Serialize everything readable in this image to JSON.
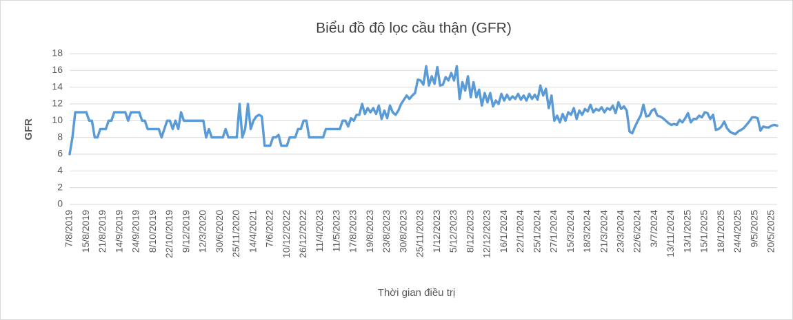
{
  "chart_data": {
    "type": "line",
    "title": "Biểu đồ độ lọc cầu thận (GFR)",
    "x_label": "Thời gian điều trị",
    "y_label": "GFR",
    "color": "#5b9bd5",
    "grid": true,
    "ylim": [
      0,
      18
    ],
    "yticks": [
      0,
      2,
      4,
      6,
      8,
      10,
      12,
      14,
      16,
      18
    ],
    "categories": [
      "7/8/2019",
      null,
      null,
      null,
      null,
      null,
      "15/8/2019",
      null,
      null,
      null,
      null,
      null,
      "21/8/2019",
      null,
      null,
      null,
      null,
      null,
      "14/9/2019",
      null,
      null,
      null,
      null,
      null,
      "24/9/2019",
      null,
      null,
      null,
      null,
      null,
      "8/10/2019",
      null,
      null,
      null,
      null,
      null,
      "22/10/2019",
      null,
      null,
      null,
      null,
      null,
      "9/12/2019",
      null,
      null,
      null,
      null,
      null,
      "12/3/2020",
      null,
      null,
      null,
      null,
      null,
      "30/6/2020",
      null,
      null,
      null,
      null,
      null,
      "25/11/2020",
      null,
      null,
      null,
      null,
      null,
      "14/4/2021",
      null,
      null,
      null,
      null,
      null,
      "7/6/2022",
      null,
      null,
      null,
      null,
      null,
      "10/12/2022",
      null,
      null,
      null,
      null,
      null,
      "26/12/2022",
      null,
      null,
      null,
      null,
      null,
      "11/4/2023",
      null,
      null,
      null,
      null,
      null,
      "11/5/2023",
      null,
      null,
      null,
      null,
      null,
      "17/8/2023",
      null,
      null,
      null,
      null,
      null,
      "19/8/2023",
      null,
      null,
      null,
      null,
      null,
      "23/8/2023",
      null,
      null,
      null,
      null,
      null,
      "30/8/2023",
      null,
      null,
      null,
      null,
      null,
      "25/11/2023",
      null,
      null,
      null,
      null,
      null,
      "1/12/2023",
      null,
      null,
      null,
      null,
      null,
      "5/12/2023",
      null,
      null,
      null,
      null,
      null,
      "8/12/2023",
      null,
      null,
      null,
      null,
      null,
      "12/12/2023",
      null,
      null,
      null,
      null,
      null,
      "16/1/2024",
      null,
      null,
      null,
      null,
      null,
      "22/1/2024",
      null,
      null,
      null,
      null,
      null,
      "25/1/2024",
      null,
      null,
      null,
      null,
      null,
      "27/1/2024",
      null,
      null,
      null,
      null,
      null,
      "15/3/2024",
      null,
      null,
      null,
      null,
      null,
      "18/3/2024",
      null,
      null,
      null,
      null,
      null,
      "21/3/2024",
      null,
      null,
      null,
      null,
      null,
      "23/3/2024",
      null,
      null,
      null,
      null,
      null,
      "22/6/2024",
      null,
      null,
      null,
      null,
      null,
      "3/7/2024",
      null,
      null,
      null,
      null,
      null,
      "13/11/2024",
      null,
      null,
      null,
      null,
      null,
      "13/1/2025",
      null,
      null,
      null,
      null,
      null,
      "15/1/2025",
      null,
      null,
      null,
      null,
      null,
      "18/1/2025",
      null,
      null,
      null,
      null,
      null,
      "24/4/2025",
      null,
      null,
      null,
      null,
      null,
      "9/5/2025",
      null,
      null,
      null,
      null,
      null,
      "20/5/2025",
      null,
      null
    ],
    "values": [
      6,
      8,
      11,
      11,
      11,
      11,
      11,
      10,
      10,
      8,
      8,
      9,
      9,
      9,
      10,
      10,
      11,
      11,
      11,
      11,
      11,
      10,
      11,
      11,
      11,
      11,
      10,
      10,
      9,
      9,
      9,
      9,
      9,
      8,
      9,
      10,
      10,
      9,
      10,
      9,
      11,
      10,
      10,
      10,
      10,
      10,
      10,
      10,
      10,
      8,
      9,
      8,
      8,
      8,
      8,
      8,
      9,
      8,
      8,
      8,
      8,
      12,
      8,
      9,
      12,
      9,
      10,
      10.5,
      10.7,
      10.5,
      7,
      7,
      7,
      8,
      8,
      8.3,
      7,
      7,
      7,
      8,
      8,
      8,
      9,
      9,
      10,
      10,
      8,
      8,
      8,
      8,
      8,
      8,
      9,
      9,
      9,
      9,
      9,
      9,
      10,
      10,
      9.3,
      10.3,
      10,
      10.7,
      10.7,
      12,
      10.8,
      11.5,
      11,
      11.5,
      10.8,
      11.8,
      10.2,
      11.2,
      10.3,
      11.8,
      11,
      10.7,
      11.2,
      12,
      12.5,
      13,
      12.6,
      13,
      13.3,
      14.9,
      14.8,
      14.3,
      16.5,
      14.2,
      15.3,
      14.4,
      16.4,
      14.2,
      14.3,
      15.2,
      14.8,
      15.7,
      14.8,
      16.5,
      12.6,
      14.6,
      13.6,
      15.3,
      12.8,
      14.6,
      12.8,
      13.7,
      11.8,
      13.3,
      12.2,
      13.3,
      11.7,
      12.4,
      12,
      13.2,
      12.4,
      13.1,
      12.5,
      12.9,
      12.6,
      13.2,
      12.5,
      13,
      12.4,
      13.2,
      12.6,
      13.1,
      12.5,
      14.2,
      13,
      13.8,
      11.5,
      13,
      10,
      10.6,
      9.8,
      10.8,
      10,
      11,
      10.7,
      11.5,
      10.2,
      11.2,
      10.7,
      11.4,
      11.1,
      11.9,
      11,
      11.4,
      11.2,
      11.6,
      11,
      11.5,
      11.3,
      11.8,
      10.9,
      12.2,
      11.4,
      11.7,
      11.2,
      8.7,
      8.5,
      9.3,
      10,
      10.6,
      11.9,
      10.5,
      10.6,
      11.2,
      11.4,
      10.6,
      10.5,
      10.3,
      10,
      9.7,
      9.5,
      9.6,
      9.5,
      10.1,
      9.8,
      10.3,
      10.9,
      9.8,
      10.2,
      10.2,
      10.6,
      10.4,
      11,
      10.9,
      10.2,
      10.7,
      8.9,
      9,
      9.3,
      9.9,
      9.1,
      8.7,
      8.5,
      8.4,
      8.7,
      8.9,
      9.1,
      9.5,
      9.9,
      10.4,
      10.4,
      10.3,
      8.8,
      9.3,
      9.2,
      9.2,
      9.4,
      9.5,
      9.4
    ]
  }
}
